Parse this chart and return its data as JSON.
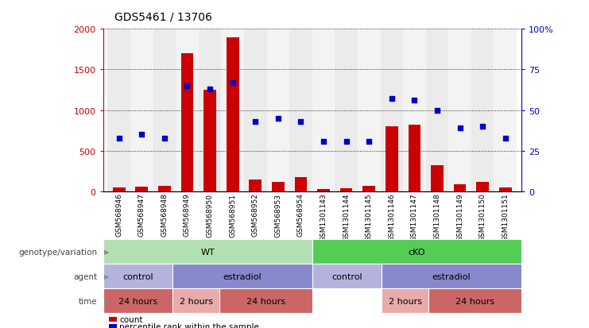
{
  "title": "GDS5461 / 13706",
  "samples": [
    "GSM568946",
    "GSM568947",
    "GSM568948",
    "GSM568949",
    "GSM568950",
    "GSM568951",
    "GSM568952",
    "GSM568953",
    "GSM568954",
    "GSM1301143",
    "GSM1301144",
    "GSM1301145",
    "GSM1301146",
    "GSM1301147",
    "GSM1301148",
    "GSM1301149",
    "GSM1301150",
    "GSM1301151"
  ],
  "counts": [
    50,
    60,
    70,
    1700,
    1250,
    1900,
    150,
    120,
    180,
    30,
    40,
    70,
    800,
    820,
    320,
    90,
    120,
    50
  ],
  "percentiles": [
    33,
    35,
    33,
    65,
    63,
    67,
    43,
    45,
    43,
    31,
    31,
    31,
    57,
    56,
    50,
    39,
    40,
    33
  ],
  "bar_color": "#cc0000",
  "dot_color": "#0000cc",
  "ylim_left": [
    0,
    2000
  ],
  "ylim_right": [
    0,
    100
  ],
  "yticks_left": [
    0,
    500,
    1000,
    1500,
    2000
  ],
  "yticks_right": [
    0,
    25,
    50,
    75,
    100
  ],
  "yticklabels_right": [
    "0",
    "25",
    "50",
    "75",
    "100%"
  ],
  "annotation_rows": [
    {
      "label": "genotype/variation",
      "segments": [
        {
          "text": "WT",
          "start": 0,
          "end": 9,
          "color": "#b2e0b2"
        },
        {
          "text": "cKO",
          "start": 9,
          "end": 18,
          "color": "#55cc55"
        }
      ]
    },
    {
      "label": "agent",
      "segments": [
        {
          "text": "control",
          "start": 0,
          "end": 3,
          "color": "#b3b3dd"
        },
        {
          "text": "estradiol",
          "start": 3,
          "end": 9,
          "color": "#8888cc"
        },
        {
          "text": "control",
          "start": 9,
          "end": 12,
          "color": "#b3b3dd"
        },
        {
          "text": "estradiol",
          "start": 12,
          "end": 18,
          "color": "#8888cc"
        }
      ]
    },
    {
      "label": "time",
      "segments": [
        {
          "text": "24 hours",
          "start": 0,
          "end": 3,
          "color": "#cc6666"
        },
        {
          "text": "2 hours",
          "start": 3,
          "end": 5,
          "color": "#e8aaaa"
        },
        {
          "text": "24 hours",
          "start": 5,
          "end": 9,
          "color": "#cc6666"
        },
        {
          "text": "2 hours",
          "start": 12,
          "end": 14,
          "color": "#e8aaaa"
        },
        {
          "text": "24 hours",
          "start": 14,
          "end": 18,
          "color": "#cc6666"
        }
      ]
    }
  ],
  "legend_items": [
    {
      "color": "#cc0000",
      "label": "count"
    },
    {
      "color": "#0000cc",
      "label": "percentile rank within the sample"
    }
  ],
  "col_colors": [
    "#d8d8d8",
    "#e8e8e8"
  ]
}
